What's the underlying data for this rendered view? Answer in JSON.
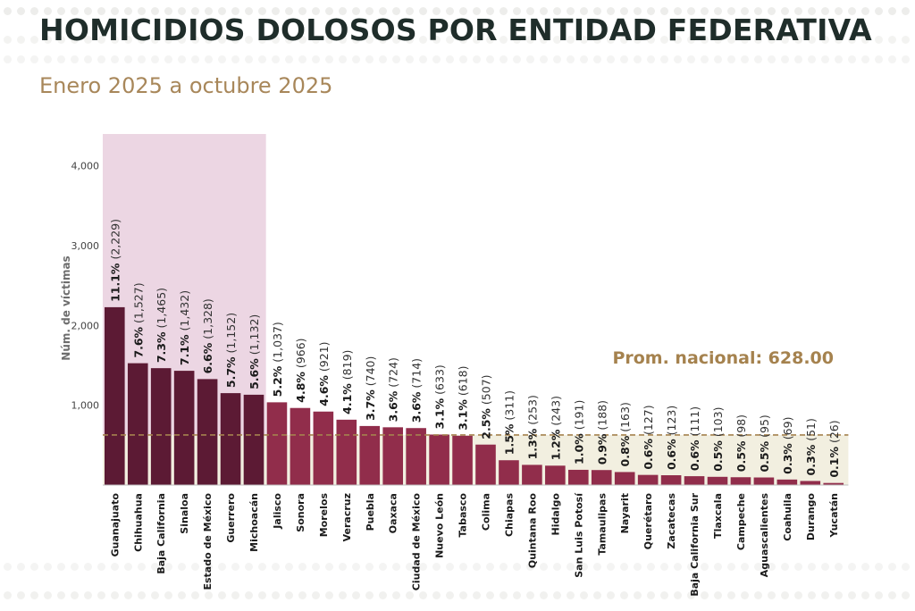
{
  "header": {
    "title": "HOMICIDIOS DOLOSOS POR ENTIDAD FEDERATIVA",
    "subtitle": "Enero 2025 a octubre 2025"
  },
  "colors": {
    "highlight_bar": "#5c1a34",
    "bar": "#912d4b",
    "highlight_band": "#ecd6e3",
    "average_band": "#f2efe0",
    "average_line": "#a5824e",
    "average_label": "#a5824e",
    "title": "#1f2d2a",
    "subtitle": "#a8875a"
  },
  "chart_data": {
    "type": "bar",
    "orientation": "vertical",
    "ylabel": "Núm. de víctimas",
    "ylim": [
      0,
      4400
    ],
    "yticks": [
      1000,
      2000,
      3000,
      4000
    ],
    "ytick_labels": [
      "1,000",
      "2,000",
      "3,000",
      "4,000"
    ],
    "highlight_count": 7,
    "average": {
      "value": 628,
      "label": "Prom. nacional: 628.00"
    },
    "categories": [
      "Guanajuato",
      "Chihuahua",
      "Baja California",
      "Sinaloa",
      "Estado de México",
      "Guerrero",
      "Michoacán",
      "Jalisco",
      "Sonora",
      "Morelos",
      "Veracruz",
      "Puebla",
      "Oaxaca",
      "Ciudad de México",
      "Nuevo León",
      "Tabasco",
      "Colima",
      "Chiapas",
      "Quintana Roo",
      "Hidalgo",
      "San Luis Potosí",
      "Tamaulipas",
      "Nayarit",
      "Querétaro",
      "Zacatecas",
      "Baja California Sur",
      "Tlaxcala",
      "Campeche",
      "Aguascalientes",
      "Coahuila",
      "Durango",
      "Yucatán"
    ],
    "values": [
      2229,
      1527,
      1465,
      1432,
      1328,
      1152,
      1132,
      1037,
      966,
      921,
      819,
      740,
      724,
      714,
      633,
      618,
      507,
      311,
      253,
      243,
      191,
      188,
      163,
      127,
      123,
      111,
      103,
      98,
      95,
      69,
      51,
      26
    ],
    "percent_labels": [
      "11.1%",
      "7.6%",
      "7.3%",
      "7.1%",
      "6.6%",
      "5.7%",
      "5.6%",
      "5.2%",
      "4.8%",
      "4.6%",
      "4.1%",
      "3.7%",
      "3.6%",
      "3.6%",
      "3.1%",
      "3.1%",
      "2.5%",
      "1.5%",
      "1.3%",
      "1.2%",
      "1.0%",
      "0.9%",
      "0.8%",
      "0.6%",
      "0.6%",
      "0.6%",
      "0.5%",
      "0.5%",
      "0.5%",
      "0.3%",
      "0.3%",
      "0.1%"
    ],
    "value_labels": [
      "(2,229)",
      "(1,527)",
      "(1,465)",
      "(1,432)",
      "(1,328)",
      "(1,152)",
      "(1,132)",
      "(1,037)",
      "(966)",
      "(921)",
      "(819)",
      "(740)",
      "(724)",
      "(714)",
      "(633)",
      "(618)",
      "(507)",
      "(311)",
      "(253)",
      "(243)",
      "(191)",
      "(188)",
      "(163)",
      "(127)",
      "(123)",
      "(111)",
      "(103)",
      "(98)",
      "(95)",
      "(69)",
      "(51)",
      "(26)"
    ]
  }
}
